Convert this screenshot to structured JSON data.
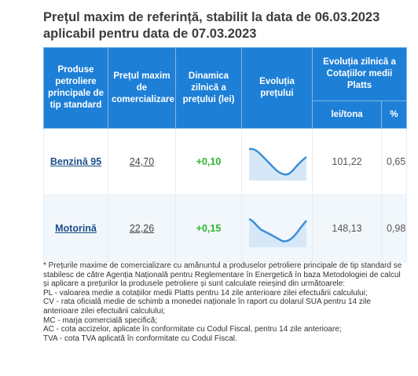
{
  "title": "Prețul maxim de referință, stabilit la data de 06.03.2023 aplicabil pentru data de 07.03.2023",
  "table": {
    "headers": {
      "produse": "Produse petroliere principale de tip standard",
      "pret": "Prețul maxim de comercializare",
      "dinamica": "Dinamica zilnică a prețului (lei)",
      "evolutie": "Evoluția prețului",
      "platts": "Evoluția zilnică a Cotațiilor medii Platts",
      "leitona": "lei/tona",
      "percent": "%"
    },
    "rows": [
      {
        "product": "Benzină 95",
        "price": "24,70",
        "dynamic": "+0,10",
        "lei_tona": "101,22",
        "percent": "0,65",
        "spark_color": "#3a8fd8"
      },
      {
        "product": "Motorină",
        "price": "22,26",
        "dynamic": "+0,15",
        "lei_tona": "148,13",
        "percent": "0,98",
        "spark_color": "#3a8fd8"
      }
    ]
  },
  "notes": [
    "* Prețurile maxime de comercializare cu amănuntul a produselor petroliere principale de tip standard se stabilesc de către Agenția Națională pentru Reglementare în Energetică în baza Metodologiei de calcul și aplicare a prețurilor la produsele petroliere și sunt calculate reieșind din următoarele:",
    "PL - valoarea medie a cotațiilor medii Platts pentru 14 zile anterioare zilei efectuării calculului;",
    "CV - rata oficială medie de schimb a monedei naționale în raport cu dolarul SUA pentru 14 zile anterioare zilei efectuării calculului;",
    "MC - marja comercială specifică;",
    "AC - cota accizelor, aplicate în conformitate cu Codul Fiscal, pentru 14 zile anterioare;",
    "TVA - cota TVA aplicată în conformitate cu Codul Fiscal."
  ]
}
